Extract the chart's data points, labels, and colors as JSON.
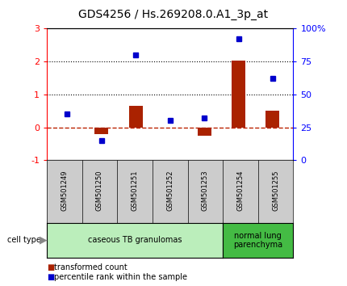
{
  "title": "GDS4256 / Hs.269208.0.A1_3p_at",
  "samples": [
    "GSM501249",
    "GSM501250",
    "GSM501251",
    "GSM501252",
    "GSM501253",
    "GSM501254",
    "GSM501255"
  ],
  "transformed_count": [
    0.0,
    -0.2,
    0.65,
    -0.02,
    -0.25,
    2.02,
    0.5
  ],
  "percentile_rank": [
    35,
    15,
    80,
    30,
    32,
    92,
    62
  ],
  "ylim_left": [
    -1,
    3
  ],
  "ylim_right": [
    0,
    100
  ],
  "yticks_left": [
    -1,
    0,
    1,
    2,
    3
  ],
  "yticks_right": [
    0,
    25,
    50,
    75,
    100
  ],
  "yticklabels_right": [
    "0",
    "25",
    "50",
    "75",
    "100%"
  ],
  "bar_color": "#AA2200",
  "dot_color": "#0000CC",
  "zero_line_color": "#BB2200",
  "group1": {
    "label": "caseous TB granulomas",
    "start": 0,
    "end": 4,
    "color": "#BBEEBB"
  },
  "group2": {
    "label": "normal lung\nparenchyma",
    "start": 5,
    "end": 6,
    "color": "#44BB44"
  },
  "legend_items": [
    {
      "color": "#AA2200",
      "label": "transformed count"
    },
    {
      "color": "#0000CC",
      "label": "percentile rank within the sample"
    }
  ],
  "cell_type_label": "cell type",
  "sample_bg": "#CCCCCC",
  "plot_bg": "#FFFFFF"
}
